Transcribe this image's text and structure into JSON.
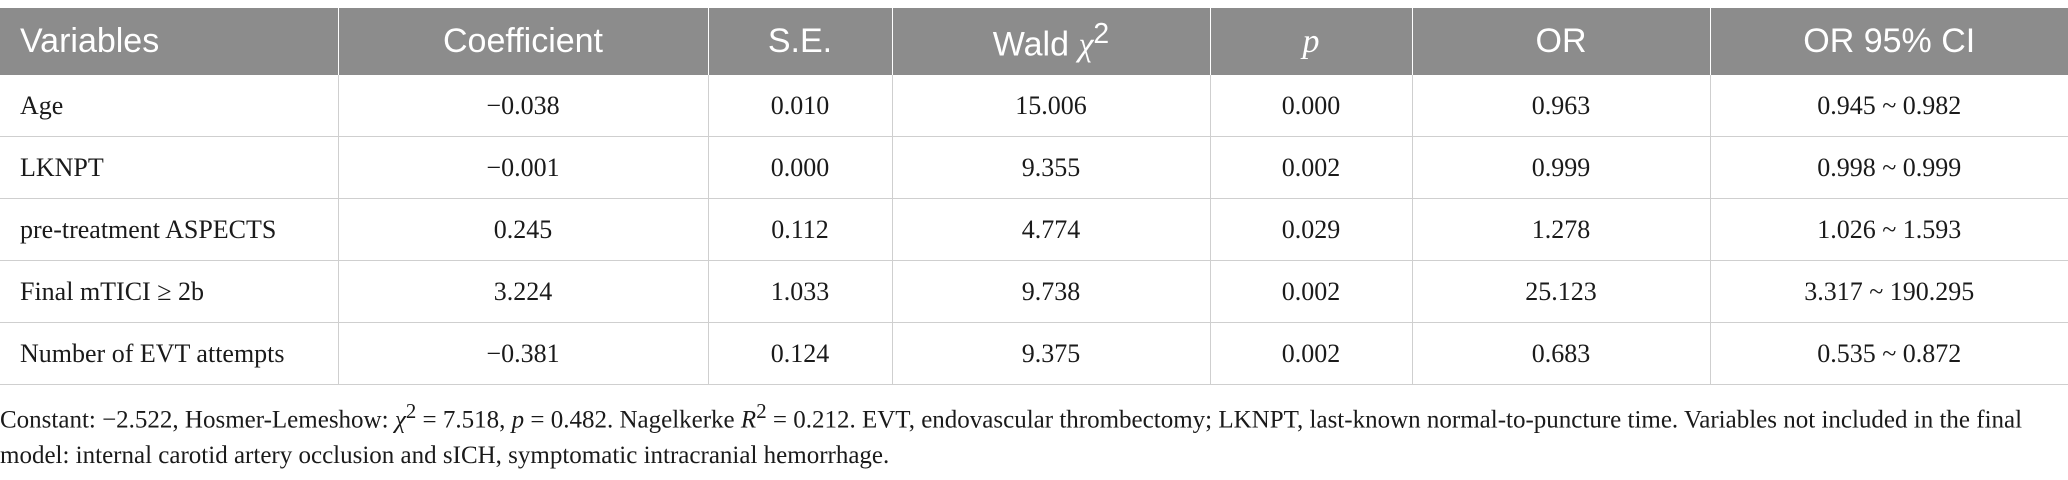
{
  "table": {
    "headers": {
      "variables": "Variables",
      "coefficient": "Coefficient",
      "se": "S.E.",
      "wald_prefix": "Wald ",
      "wald_symbol": "χ",
      "wald_sup": "2",
      "p": "p",
      "or": "OR",
      "or_ci": "OR 95% CI"
    },
    "rows": [
      [
        "Age",
        "−0.038",
        "0.010",
        "15.006",
        "0.000",
        "0.963",
        "0.945 ~ 0.982"
      ],
      [
        "LKNPT",
        "−0.001",
        "0.000",
        "9.355",
        "0.002",
        "0.999",
        "0.998 ~ 0.999"
      ],
      [
        "pre-treatment ASPECTS",
        "0.245",
        "0.112",
        "4.774",
        "0.029",
        "1.278",
        "1.026 ~ 1.593"
      ],
      [
        "Final mTICI ≥ 2b",
        "3.224",
        "1.033",
        "9.738",
        "0.002",
        "25.123",
        "3.317 ~ 190.295"
      ],
      [
        "Number of EVT attempts",
        "−0.381",
        "0.124",
        "9.375",
        "0.002",
        "0.683",
        "0.535 ~ 0.872"
      ]
    ]
  },
  "footnote": {
    "part1": "Constant: −2.522, Hosmer-Lemeshow: ",
    "chi": "χ",
    "chi_sup": "2",
    "part2": " = 7.518, ",
    "p": "p",
    "part3": " = 0.482. Nagelkerke ",
    "r": "R",
    "r_sup": "2",
    "part4": " = 0.212. EVT, endovascular thrombectomy; LKNPT, last-known normal-to-puncture time. Variables not included in the final model: internal carotid artery occlusion and sICH, symptomatic intracranial hemorrhage."
  }
}
